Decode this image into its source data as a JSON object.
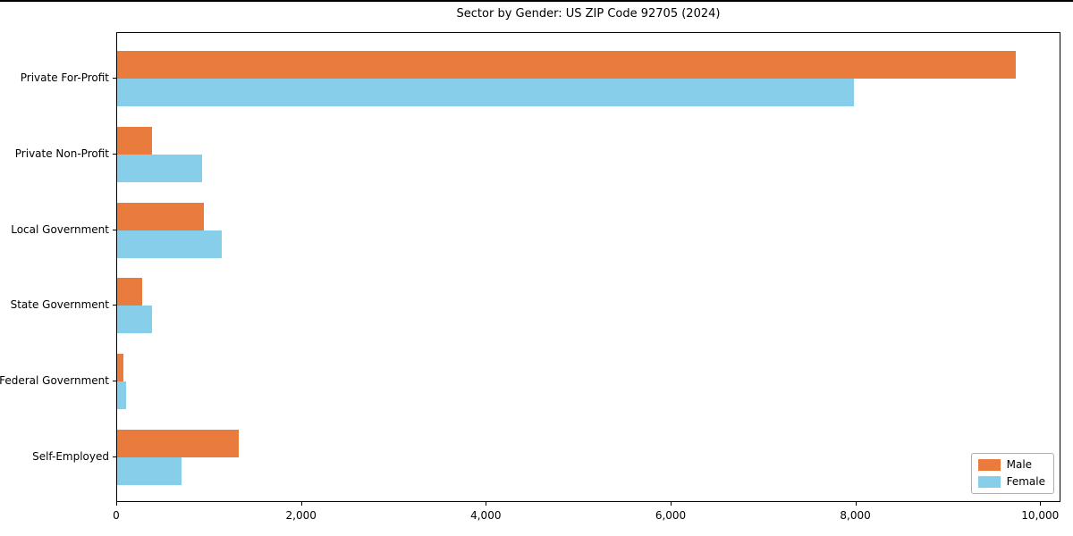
{
  "title": "Sector by Gender: US ZIP Code 92705 (2024)",
  "colors": {
    "male": "#e97c3c",
    "female": "#87ceeb",
    "spine": "#000000",
    "background": "#ffffff",
    "legend_border": "#b0b0b0"
  },
  "chart_data": {
    "type": "bar",
    "orientation": "horizontal",
    "title": "Sector by Gender: US ZIP Code 92705 (2024)",
    "categories": [
      "Private For-Profit",
      "Private Non-Profit",
      "Local Government",
      "State Government",
      "Federal Government",
      "Self-Employed"
    ],
    "series": [
      {
        "name": "Male",
        "color": "#e97c3c",
        "values": [
          9730,
          380,
          935,
          275,
          70,
          1320
        ]
      },
      {
        "name": "Female",
        "color": "#87ceeb",
        "values": [
          7970,
          920,
          1130,
          380,
          95,
          695
        ]
      }
    ],
    "xlabel": "",
    "ylabel": "",
    "xlim": [
      0,
      10220
    ],
    "x_ticks": [
      0,
      2000,
      4000,
      6000,
      8000,
      10000
    ],
    "x_tick_labels": [
      "0",
      "2,000",
      "4,000",
      "6,000",
      "8,000",
      "10,000"
    ],
    "grid": false,
    "legend": {
      "position": "lower right",
      "entries": [
        "Male",
        "Female"
      ]
    }
  }
}
